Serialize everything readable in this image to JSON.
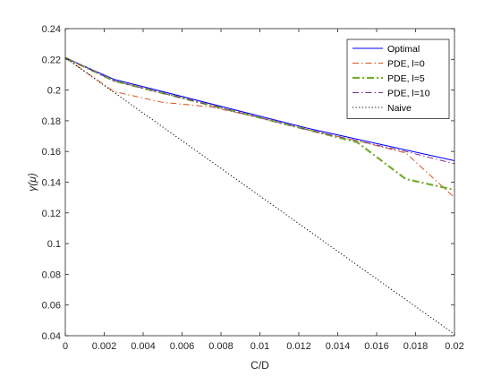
{
  "chart_data": {
    "type": "line",
    "xlabel": "C/D",
    "ylabel": "γ(μ)",
    "xlim": [
      0,
      0.02
    ],
    "ylim": [
      0.04,
      0.24
    ],
    "xticks": [
      0,
      0.002,
      0.004,
      0.006,
      0.008,
      0.01,
      0.012,
      0.014,
      0.016,
      0.018,
      0.02
    ],
    "xtick_labels": [
      "0",
      "0.002",
      "0.004",
      "0.006",
      "0.008",
      "0.01",
      "0.012",
      "0.014",
      "0.016",
      "0.018",
      "0.02"
    ],
    "yticks": [
      0.04,
      0.06,
      0.08,
      0.1,
      0.12,
      0.14,
      0.16,
      0.18,
      0.2,
      0.22,
      0.24
    ],
    "ytick_labels": [
      "0.04",
      "0.06",
      "0.08",
      "0.1",
      "0.12",
      "0.14",
      "0.16",
      "0.18",
      "0.2",
      "0.22",
      "0.24"
    ],
    "grid": false,
    "legend_position": "top-right",
    "series": [
      {
        "name": "Optimal",
        "color": "#0000ff",
        "dash": "solid",
        "x": [
          0,
          0.0025,
          0.005,
          0.0075,
          0.01,
          0.0125,
          0.015,
          0.0175,
          0.02
        ],
        "y": [
          0.221,
          0.207,
          0.199,
          0.191,
          0.183,
          0.175,
          0.168,
          0.161,
          0.154
        ]
      },
      {
        "name": "PDE, l=0",
        "color": "#d95319",
        "dash": "dashdot",
        "x": [
          0,
          0.0025,
          0.005,
          0.0075,
          0.01,
          0.0125,
          0.015,
          0.0175,
          0.02
        ],
        "y": [
          0.221,
          0.199,
          0.192,
          0.189,
          0.182,
          0.174,
          0.167,
          0.159,
          0.13
        ]
      },
      {
        "name": "PDE, l=5",
        "color": "#77ac30",
        "dash": "dashdot-thick",
        "x": [
          0,
          0.0025,
          0.005,
          0.0075,
          0.01,
          0.0125,
          0.015,
          0.0175,
          0.02
        ],
        "y": [
          0.221,
          0.206,
          0.198,
          0.19,
          0.182,
          0.174,
          0.166,
          0.142,
          0.135
        ]
      },
      {
        "name": "PDE, l=10",
        "color": "#7e2f8e",
        "dash": "dashdot",
        "x": [
          0,
          0.0025,
          0.005,
          0.0075,
          0.01,
          0.0125,
          0.015,
          0.0175,
          0.02
        ],
        "y": [
          0.221,
          0.206,
          0.198,
          0.19,
          0.182,
          0.174,
          0.167,
          0.16,
          0.152
        ]
      },
      {
        "name": "Naive",
        "color": "#000000",
        "dash": "dotted",
        "x": [
          0,
          0.02
        ],
        "y": [
          0.221,
          0.041
        ]
      }
    ]
  }
}
